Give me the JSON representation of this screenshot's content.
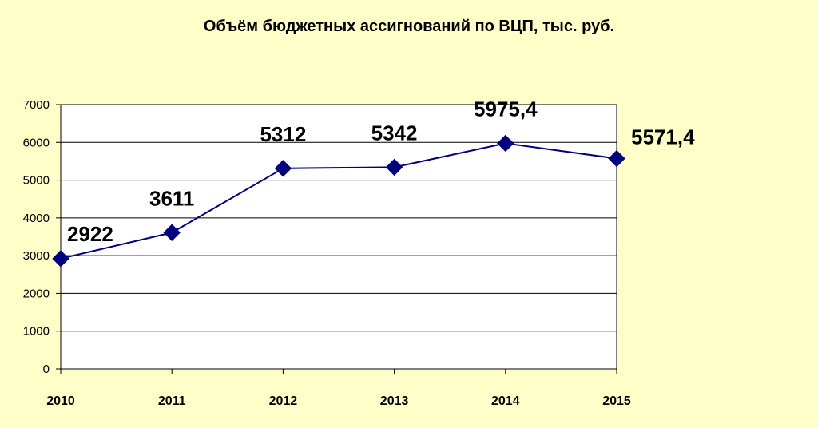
{
  "chart_data": {
    "type": "line",
    "title": "Объём бюджетных ассигнований по ВЦП, тыс. руб.",
    "xlabel": "",
    "ylabel": "",
    "x": [
      "2010",
      "2011",
      "2012",
      "2013",
      "2014",
      "2015"
    ],
    "series": [
      {
        "values": [
          2922,
          3611,
          5312,
          5342,
          5975.4,
          5571.4
        ],
        "labels": [
          "2922",
          "3611",
          "5312",
          "5342",
          "5975,4",
          "5571,4"
        ],
        "color": "#00007F",
        "marker": "diamond"
      }
    ],
    "ylim": [
      0,
      7000
    ],
    "yticks": [
      0,
      1000,
      2000,
      3000,
      4000,
      5000,
      6000,
      7000
    ],
    "grid": true,
    "legend": "none",
    "background_color": "#FEFEC8",
    "plot_background_color": "#FFFFFF"
  }
}
